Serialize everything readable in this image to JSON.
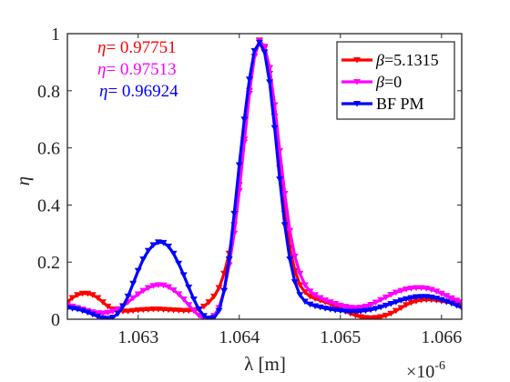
{
  "chart_data": {
    "type": "line",
    "xlabel": "λ [m]",
    "ylabel": "η",
    "x_exponent_label": "×10",
    "x_exponent_power": "-6",
    "xlim": [
      1.0623,
      1.0662
    ],
    "ylim": [
      0,
      1
    ],
    "xticks": [
      1.063,
      1.064,
      1.065,
      1.066
    ],
    "xtick_labels": [
      "1.063",
      "1.064",
      "1.065",
      "1.066"
    ],
    "yticks": [
      0,
      0.2,
      0.4,
      0.6,
      0.8,
      1
    ],
    "ytick_labels": [
      "0",
      "0.2",
      "0.4",
      "0.6",
      "0.8",
      "1"
    ],
    "legend_position": "top-right",
    "annotations": [
      {
        "prefix": "η",
        "text": "= 0.97751",
        "color": "#ff0000"
      },
      {
        "prefix": "η",
        "text": "= 0.97513",
        "color": "#ff00ff"
      },
      {
        "prefix": "η",
        "text": "= 0.96924",
        "color": "#0000ff"
      }
    ],
    "series": [
      {
        "name": "=5.1315",
        "name_symbol": "β",
        "color": "#ff0000",
        "points": [
          [
            1.0623,
            0.06
          ],
          [
            1.06235,
            0.075
          ],
          [
            1.0624,
            0.085
          ],
          [
            1.06245,
            0.09
          ],
          [
            1.0625,
            0.09
          ],
          [
            1.06255,
            0.085
          ],
          [
            1.0626,
            0.075
          ],
          [
            1.06265,
            0.06
          ],
          [
            1.0627,
            0.045
          ],
          [
            1.06275,
            0.035
          ],
          [
            1.0628,
            0.03
          ],
          [
            1.06285,
            0.028
          ],
          [
            1.0629,
            0.028
          ],
          [
            1.06295,
            0.03
          ],
          [
            1.063,
            0.032
          ],
          [
            1.06305,
            0.033
          ],
          [
            1.0631,
            0.034
          ],
          [
            1.06315,
            0.035
          ],
          [
            1.0632,
            0.035
          ],
          [
            1.06325,
            0.034
          ],
          [
            1.0633,
            0.033
          ],
          [
            1.06335,
            0.032
          ],
          [
            1.0634,
            0.031
          ],
          [
            1.06345,
            0.03
          ],
          [
            1.0635,
            0.03
          ],
          [
            1.06355,
            0.032
          ],
          [
            1.0636,
            0.036
          ],
          [
            1.06365,
            0.045
          ],
          [
            1.0637,
            0.06
          ],
          [
            1.06375,
            0.08
          ],
          [
            1.0638,
            0.11
          ],
          [
            1.06385,
            0.16
          ],
          [
            1.0639,
            0.23
          ],
          [
            1.06395,
            0.33
          ],
          [
            1.064,
            0.47
          ],
          [
            1.06405,
            0.63
          ],
          [
            1.0641,
            0.8
          ],
          [
            1.06415,
            0.92
          ],
          [
            1.0642,
            0.977
          ],
          [
            1.06425,
            0.95
          ],
          [
            1.0643,
            0.86
          ],
          [
            1.06435,
            0.71
          ],
          [
            1.0644,
            0.53
          ],
          [
            1.06445,
            0.37
          ],
          [
            1.0645,
            0.25
          ],
          [
            1.06455,
            0.17
          ],
          [
            1.0646,
            0.12
          ],
          [
            1.06465,
            0.095
          ],
          [
            1.0647,
            0.08
          ],
          [
            1.06475,
            0.072
          ],
          [
            1.0648,
            0.066
          ],
          [
            1.06485,
            0.06
          ],
          [
            1.0649,
            0.054
          ],
          [
            1.06495,
            0.045
          ],
          [
            1.065,
            0.036
          ],
          [
            1.06505,
            0.027
          ],
          [
            1.0651,
            0.02
          ],
          [
            1.06515,
            0.013
          ],
          [
            1.0652,
            0.008
          ],
          [
            1.06525,
            0.005
          ],
          [
            1.0653,
            0.004
          ],
          [
            1.06535,
            0.005
          ],
          [
            1.0654,
            0.008
          ],
          [
            1.06545,
            0.013
          ],
          [
            1.0655,
            0.02
          ],
          [
            1.06555,
            0.03
          ],
          [
            1.0656,
            0.04
          ],
          [
            1.06565,
            0.05
          ],
          [
            1.0657,
            0.058
          ],
          [
            1.06575,
            0.063
          ],
          [
            1.0658,
            0.067
          ],
          [
            1.06585,
            0.068
          ],
          [
            1.0659,
            0.068
          ],
          [
            1.06595,
            0.066
          ],
          [
            1.066,
            0.063
          ],
          [
            1.06605,
            0.06
          ],
          [
            1.0661,
            0.058
          ],
          [
            1.06615,
            0.055
          ],
          [
            1.0662,
            0.052
          ]
        ]
      },
      {
        "name": "=0",
        "name_symbol": "β",
        "color": "#ff00ff",
        "points": [
          [
            1.0623,
            0.05
          ],
          [
            1.06235,
            0.045
          ],
          [
            1.0624,
            0.04
          ],
          [
            1.06245,
            0.035
          ],
          [
            1.0625,
            0.03
          ],
          [
            1.06255,
            0.025
          ],
          [
            1.0626,
            0.022
          ],
          [
            1.06265,
            0.021
          ],
          [
            1.0627,
            0.023
          ],
          [
            1.06275,
            0.028
          ],
          [
            1.0628,
            0.036
          ],
          [
            1.06285,
            0.047
          ],
          [
            1.0629,
            0.06
          ],
          [
            1.06295,
            0.074
          ],
          [
            1.063,
            0.088
          ],
          [
            1.06305,
            0.1
          ],
          [
            1.0631,
            0.11
          ],
          [
            1.06315,
            0.117
          ],
          [
            1.0632,
            0.12
          ],
          [
            1.06325,
            0.119
          ],
          [
            1.0633,
            0.113
          ],
          [
            1.06335,
            0.102
          ],
          [
            1.0634,
            0.088
          ],
          [
            1.06345,
            0.07
          ],
          [
            1.0635,
            0.05
          ],
          [
            1.06355,
            0.03
          ],
          [
            1.0636,
            0.013
          ],
          [
            1.06365,
            0.003
          ],
          [
            1.0637,
            0.002
          ],
          [
            1.06375,
            0.012
          ],
          [
            1.0638,
            0.04
          ],
          [
            1.06385,
            0.1
          ],
          [
            1.0639,
            0.19
          ],
          [
            1.06395,
            0.3
          ],
          [
            1.064,
            0.45
          ],
          [
            1.06405,
            0.62
          ],
          [
            1.0641,
            0.79
          ],
          [
            1.06415,
            0.92
          ],
          [
            1.0642,
            0.975
          ],
          [
            1.06425,
            0.955
          ],
          [
            1.0643,
            0.88
          ],
          [
            1.06435,
            0.75
          ],
          [
            1.0644,
            0.59
          ],
          [
            1.06445,
            0.44
          ],
          [
            1.0645,
            0.31
          ],
          [
            1.06455,
            0.22
          ],
          [
            1.0646,
            0.16
          ],
          [
            1.06465,
            0.12
          ],
          [
            1.0647,
            0.098
          ],
          [
            1.06475,
            0.085
          ],
          [
            1.0648,
            0.075
          ],
          [
            1.06485,
            0.067
          ],
          [
            1.0649,
            0.06
          ],
          [
            1.06495,
            0.054
          ],
          [
            1.065,
            0.048
          ],
          [
            1.06505,
            0.044
          ],
          [
            1.0651,
            0.041
          ],
          [
            1.06515,
            0.04
          ],
          [
            1.0652,
            0.041
          ],
          [
            1.06525,
            0.045
          ],
          [
            1.0653,
            0.051
          ],
          [
            1.06535,
            0.059
          ],
          [
            1.0654,
            0.068
          ],
          [
            1.06545,
            0.077
          ],
          [
            1.0655,
            0.086
          ],
          [
            1.06555,
            0.094
          ],
          [
            1.0656,
            0.1
          ],
          [
            1.06565,
            0.105
          ],
          [
            1.0657,
            0.108
          ],
          [
            1.06575,
            0.11
          ],
          [
            1.0658,
            0.11
          ],
          [
            1.06585,
            0.108
          ],
          [
            1.0659,
            0.104
          ],
          [
            1.06595,
            0.098
          ],
          [
            1.066,
            0.09
          ],
          [
            1.06605,
            0.082
          ],
          [
            1.0661,
            0.074
          ],
          [
            1.06615,
            0.066
          ],
          [
            1.0662,
            0.06
          ]
        ]
      },
      {
        "name": "BF PM",
        "name_symbol": "",
        "color": "#0000ff",
        "points": [
          [
            1.0623,
            0.04
          ],
          [
            1.06235,
            0.038
          ],
          [
            1.0624,
            0.035
          ],
          [
            1.06245,
            0.03
          ],
          [
            1.0625,
            0.024
          ],
          [
            1.06255,
            0.017
          ],
          [
            1.0626,
            0.01
          ],
          [
            1.06265,
            0.004
          ],
          [
            1.0627,
            0.002
          ],
          [
            1.06275,
            0.006
          ],
          [
            1.0628,
            0.02
          ],
          [
            1.06285,
            0.045
          ],
          [
            1.0629,
            0.08
          ],
          [
            1.06295,
            0.125
          ],
          [
            1.063,
            0.17
          ],
          [
            1.06305,
            0.21
          ],
          [
            1.0631,
            0.24
          ],
          [
            1.06315,
            0.26
          ],
          [
            1.0632,
            0.27
          ],
          [
            1.06325,
            0.268
          ],
          [
            1.0633,
            0.255
          ],
          [
            1.06335,
            0.23
          ],
          [
            1.0634,
            0.195
          ],
          [
            1.06345,
            0.155
          ],
          [
            1.0635,
            0.112
          ],
          [
            1.06355,
            0.07
          ],
          [
            1.0636,
            0.035
          ],
          [
            1.06365,
            0.012
          ],
          [
            1.0637,
            0.003
          ],
          [
            1.06375,
            0.005
          ],
          [
            1.0638,
            0.03
          ],
          [
            1.06385,
            0.1
          ],
          [
            1.0639,
            0.21
          ],
          [
            1.06395,
            0.37
          ],
          [
            1.064,
            0.54
          ],
          [
            1.06405,
            0.7
          ],
          [
            1.0641,
            0.84
          ],
          [
            1.06415,
            0.94
          ],
          [
            1.0642,
            0.969
          ],
          [
            1.06425,
            0.935
          ],
          [
            1.0643,
            0.83
          ],
          [
            1.06435,
            0.67
          ],
          [
            1.0644,
            0.49
          ],
          [
            1.06445,
            0.33
          ],
          [
            1.0645,
            0.21
          ],
          [
            1.06455,
            0.13
          ],
          [
            1.0646,
            0.085
          ],
          [
            1.06465,
            0.062
          ],
          [
            1.0647,
            0.052
          ],
          [
            1.06475,
            0.046
          ],
          [
            1.0648,
            0.042
          ],
          [
            1.06485,
            0.038
          ],
          [
            1.0649,
            0.035
          ],
          [
            1.06495,
            0.032
          ],
          [
            1.065,
            0.03
          ],
          [
            1.06505,
            0.028
          ],
          [
            1.0651,
            0.027
          ],
          [
            1.06515,
            0.027
          ],
          [
            1.0652,
            0.028
          ],
          [
            1.06525,
            0.03
          ],
          [
            1.0653,
            0.033
          ],
          [
            1.06535,
            0.037
          ],
          [
            1.0654,
            0.042
          ],
          [
            1.06545,
            0.048
          ],
          [
            1.0655,
            0.054
          ],
          [
            1.06555,
            0.06
          ],
          [
            1.0656,
            0.066
          ],
          [
            1.06565,
            0.071
          ],
          [
            1.0657,
            0.075
          ],
          [
            1.06575,
            0.078
          ],
          [
            1.0658,
            0.079
          ],
          [
            1.06585,
            0.079
          ],
          [
            1.0659,
            0.077
          ],
          [
            1.06595,
            0.073
          ],
          [
            1.066,
            0.068
          ],
          [
            1.06605,
            0.062
          ],
          [
            1.0661,
            0.055
          ],
          [
            1.06615,
            0.048
          ],
          [
            1.0662,
            0.04
          ]
        ]
      }
    ]
  }
}
